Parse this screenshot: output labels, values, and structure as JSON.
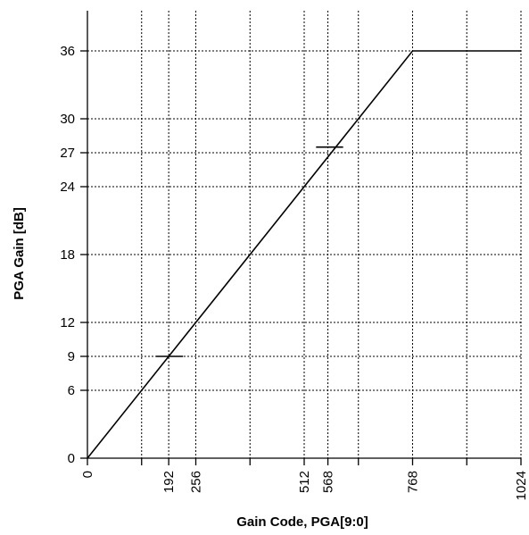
{
  "chart_data": {
    "type": "line",
    "xlabel": "Gain Code, PGA[9:0]",
    "ylabel": "PGA Gain [dB]",
    "xlim": [
      0,
      1024
    ],
    "ylim": [
      0,
      40
    ],
    "x_ticks": [
      0,
      192,
      256,
      512,
      568,
      768,
      1024
    ],
    "x_tick_labels": [
      "0",
      "192",
      "256",
      "512",
      "568",
      "768",
      "1024"
    ],
    "x_grid": [
      128,
      192,
      256,
      384,
      512,
      568,
      640,
      768,
      896,
      1024
    ],
    "y_ticks": [
      0,
      6,
      9,
      12,
      18,
      24,
      27,
      30,
      36
    ],
    "y_tick_labels": [
      "0",
      "6",
      "9",
      "12",
      "18",
      "24",
      "27",
      "30",
      "36"
    ],
    "grid": true,
    "series": [
      {
        "x": [
          0,
          768,
          1024
        ],
        "y": [
          0,
          36,
          36
        ]
      }
    ],
    "markers": [
      {
        "x_from": 162,
        "x_to": 226,
        "y": 9
      },
      {
        "x_from": 540,
        "x_to": 604,
        "y": 27.5
      }
    ]
  }
}
